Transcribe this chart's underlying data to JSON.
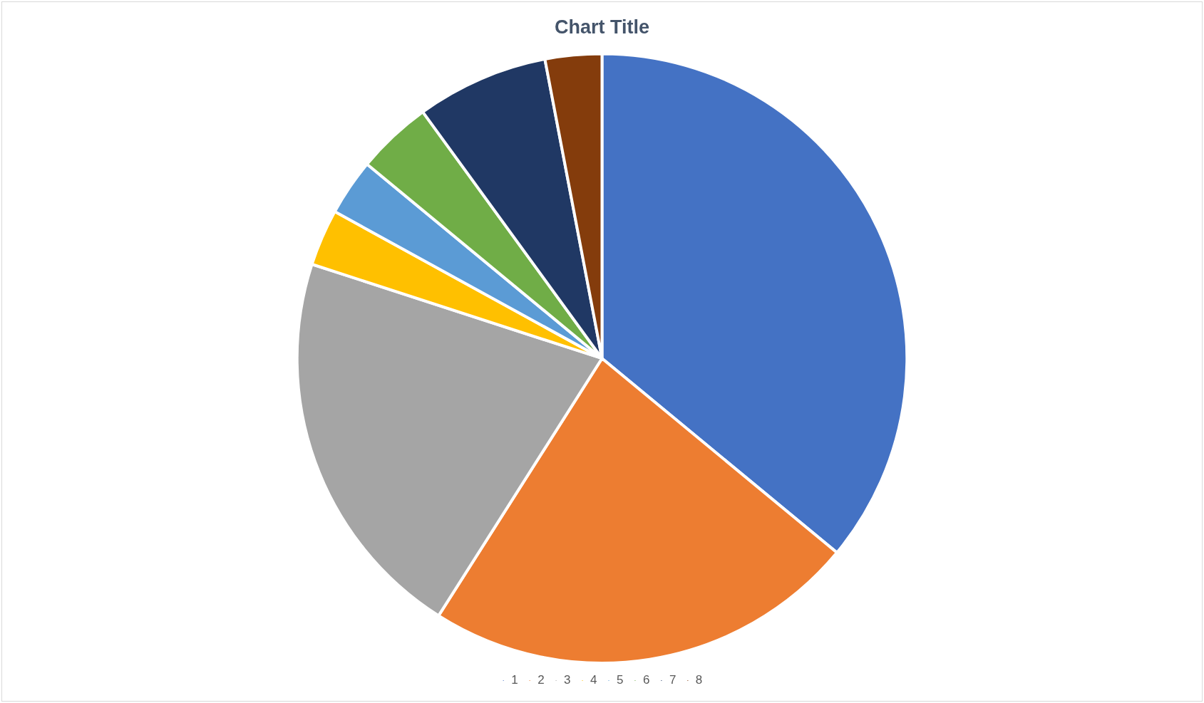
{
  "chart_data": {
    "type": "pie",
    "title": "Chart Title",
    "categories": [
      "1",
      "2",
      "3",
      "4",
      "5",
      "6",
      "7",
      "8"
    ],
    "values": [
      36,
      23,
      21,
      3,
      3,
      4,
      7,
      3
    ],
    "colors": [
      "#4472c4",
      "#ed7d31",
      "#a5a5a5",
      "#ffc000",
      "#5b9bd5",
      "#70ad47",
      "#203864",
      "#843c0c"
    ],
    "legend": "bottom"
  }
}
